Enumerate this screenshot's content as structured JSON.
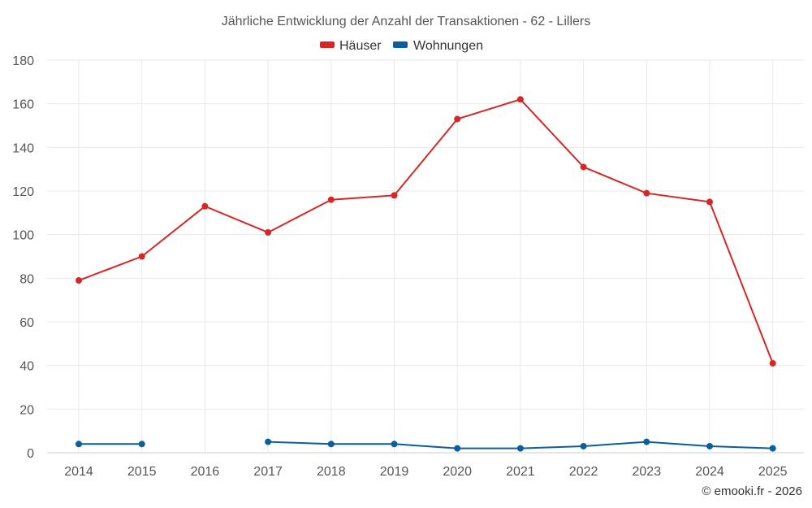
{
  "chart_data": {
    "type": "line",
    "title": "Jährliche Entwicklung der Anzahl der Transaktionen - 62 - Lillers",
    "categories": [
      "2014",
      "2015",
      "2016",
      "2017",
      "2018",
      "2019",
      "2020",
      "2021",
      "2022",
      "2023",
      "2024",
      "2025"
    ],
    "series": [
      {
        "name": "Häuser",
        "color": "#d62728",
        "values": [
          79,
          90,
          113,
          101,
          116,
          118,
          153,
          162,
          131,
          119,
          115,
          41
        ]
      },
      {
        "name": "Wohnungen",
        "color": "#0b5f9a",
        "values": [
          4,
          4,
          null,
          5,
          4,
          4,
          2,
          2,
          3,
          5,
          3,
          2
        ]
      }
    ],
    "ylim": [
      0,
      180
    ],
    "yticks": [
      0,
      20,
      40,
      60,
      80,
      100,
      120,
      140,
      160,
      180
    ],
    "grid": true,
    "legend_position": "top-center",
    "credit": "© emooki.fr - 2026"
  }
}
